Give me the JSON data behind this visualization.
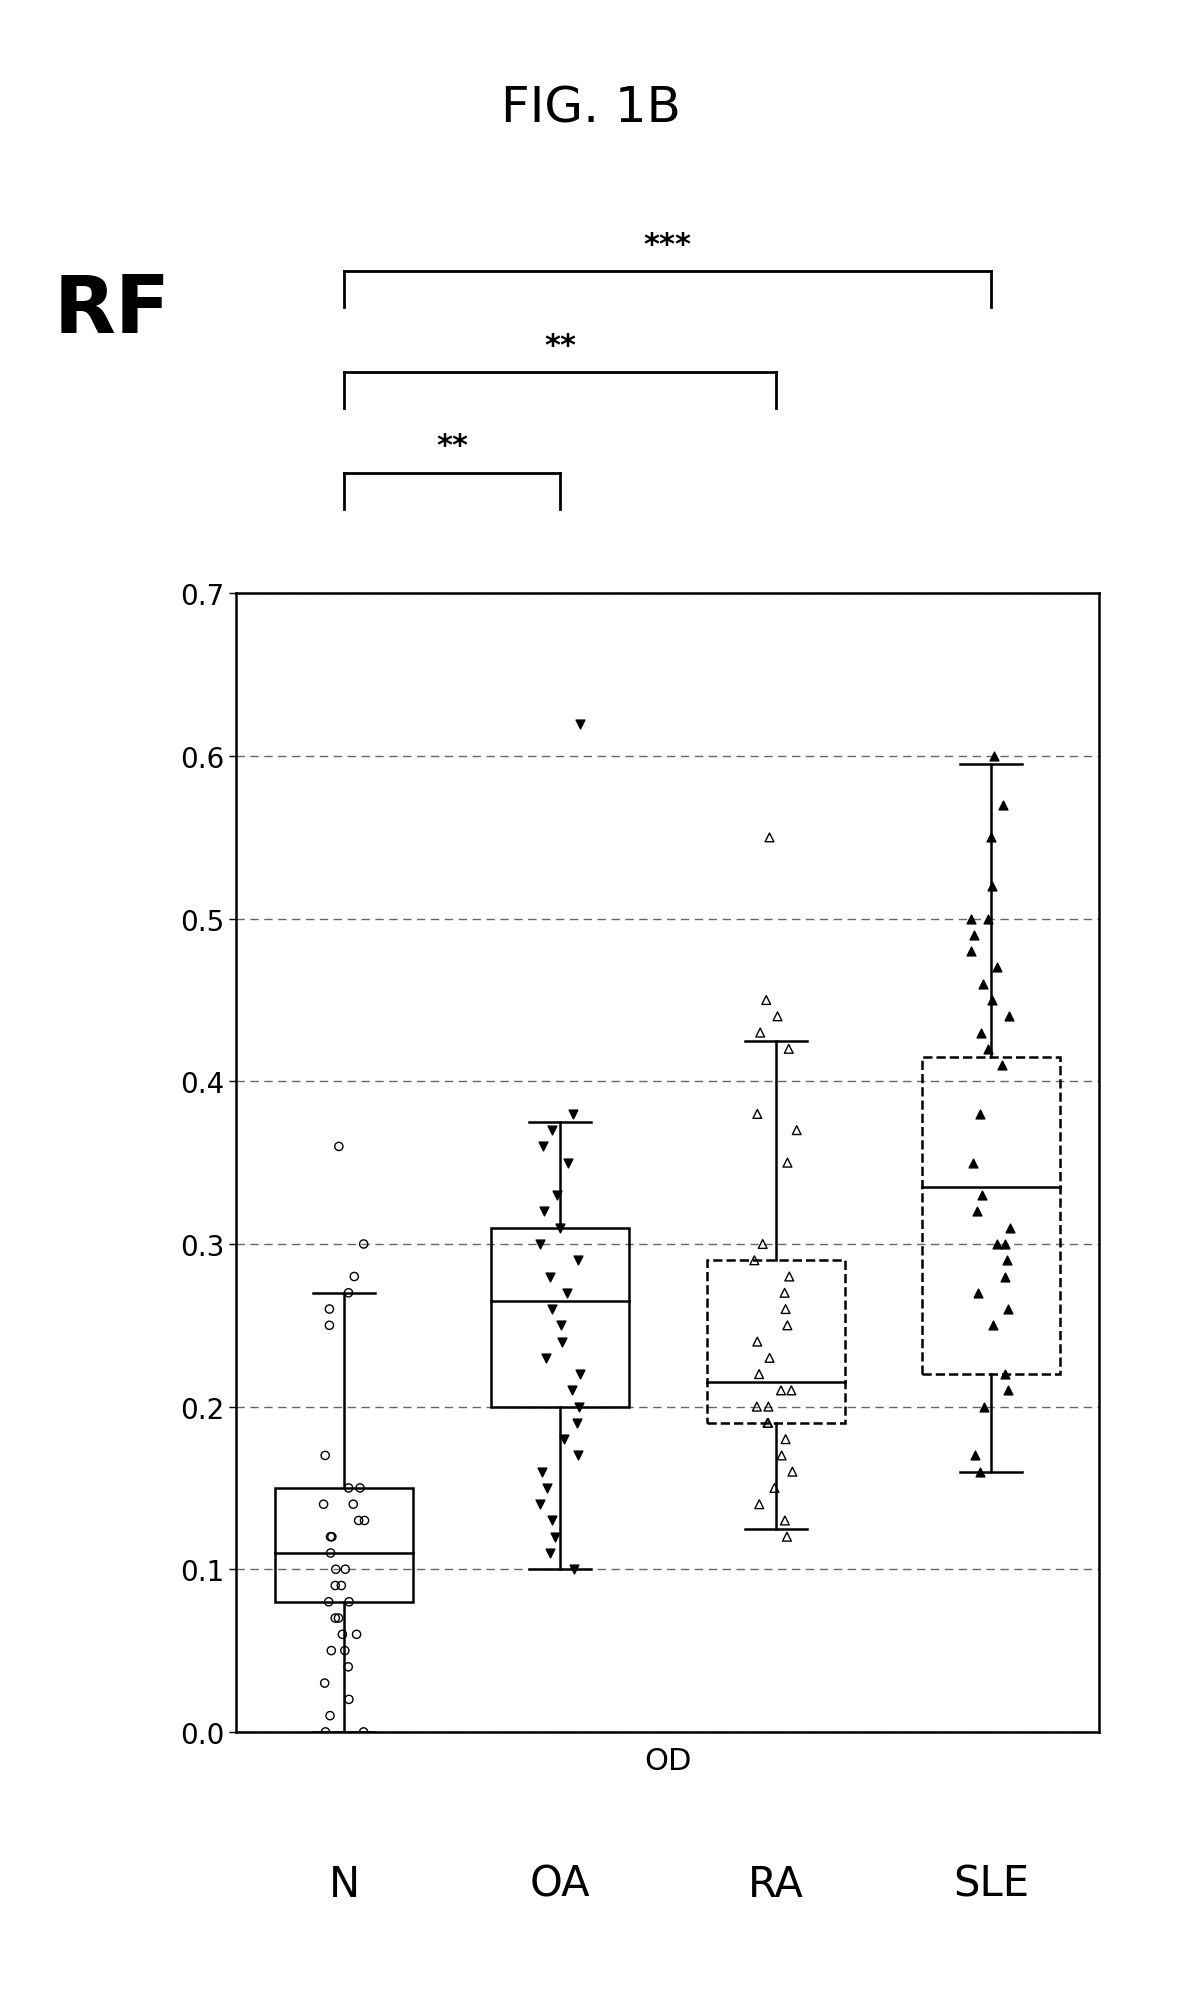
{
  "title": "FIG. 1B",
  "ylabel_inside": "RF",
  "xlabel": "OD",
  "group_labels": [
    "N",
    "OA",
    "RA",
    "SLE"
  ],
  "ylim": [
    0.0,
    0.7
  ],
  "yticks": [
    0.0,
    0.1,
    0.2,
    0.3,
    0.4,
    0.5,
    0.6,
    0.7
  ],
  "N_data": [
    0.36,
    0.3,
    0.28,
    0.27,
    0.26,
    0.25,
    0.17,
    0.15,
    0.15,
    0.14,
    0.14,
    0.13,
    0.13,
    0.12,
    0.12,
    0.11,
    0.1,
    0.1,
    0.09,
    0.09,
    0.08,
    0.08,
    0.07,
    0.07,
    0.06,
    0.06,
    0.05,
    0.05,
    0.04,
    0.03,
    0.02,
    0.01,
    0.0,
    0.0
  ],
  "OA_data": [
    0.62,
    0.38,
    0.37,
    0.36,
    0.35,
    0.33,
    0.32,
    0.31,
    0.3,
    0.29,
    0.28,
    0.27,
    0.26,
    0.25,
    0.24,
    0.23,
    0.22,
    0.21,
    0.2,
    0.19,
    0.18,
    0.17,
    0.16,
    0.15,
    0.14,
    0.13,
    0.12,
    0.11,
    0.1
  ],
  "RA_data": [
    0.55,
    0.45,
    0.44,
    0.43,
    0.42,
    0.38,
    0.37,
    0.35,
    0.3,
    0.29,
    0.28,
    0.27,
    0.26,
    0.25,
    0.24,
    0.23,
    0.22,
    0.21,
    0.21,
    0.2,
    0.2,
    0.19,
    0.19,
    0.18,
    0.17,
    0.16,
    0.15,
    0.14,
    0.13,
    0.12
  ],
  "SLE_data": [
    0.6,
    0.57,
    0.55,
    0.52,
    0.5,
    0.5,
    0.49,
    0.48,
    0.47,
    0.46,
    0.45,
    0.44,
    0.43,
    0.42,
    0.41,
    0.38,
    0.35,
    0.33,
    0.32,
    0.31,
    0.3,
    0.3,
    0.29,
    0.28,
    0.27,
    0.26,
    0.25,
    0.22,
    0.21,
    0.2,
    0.17,
    0.16
  ],
  "N_box": {
    "q1": 0.08,
    "median": 0.11,
    "q3": 0.15,
    "whisker_low": 0.0,
    "whisker_high": 0.27
  },
  "OA_box": {
    "q1": 0.2,
    "median": 0.265,
    "q3": 0.31,
    "whisker_low": 0.1,
    "whisker_high": 0.375
  },
  "RA_box": {
    "q1": 0.19,
    "median": 0.215,
    "q3": 0.29,
    "whisker_low": 0.125,
    "whisker_high": 0.425
  },
  "SLE_box": {
    "q1": 0.22,
    "median": 0.335,
    "q3": 0.415,
    "whisker_low": 0.16,
    "whisker_high": 0.595
  },
  "background_color": "#ffffff"
}
